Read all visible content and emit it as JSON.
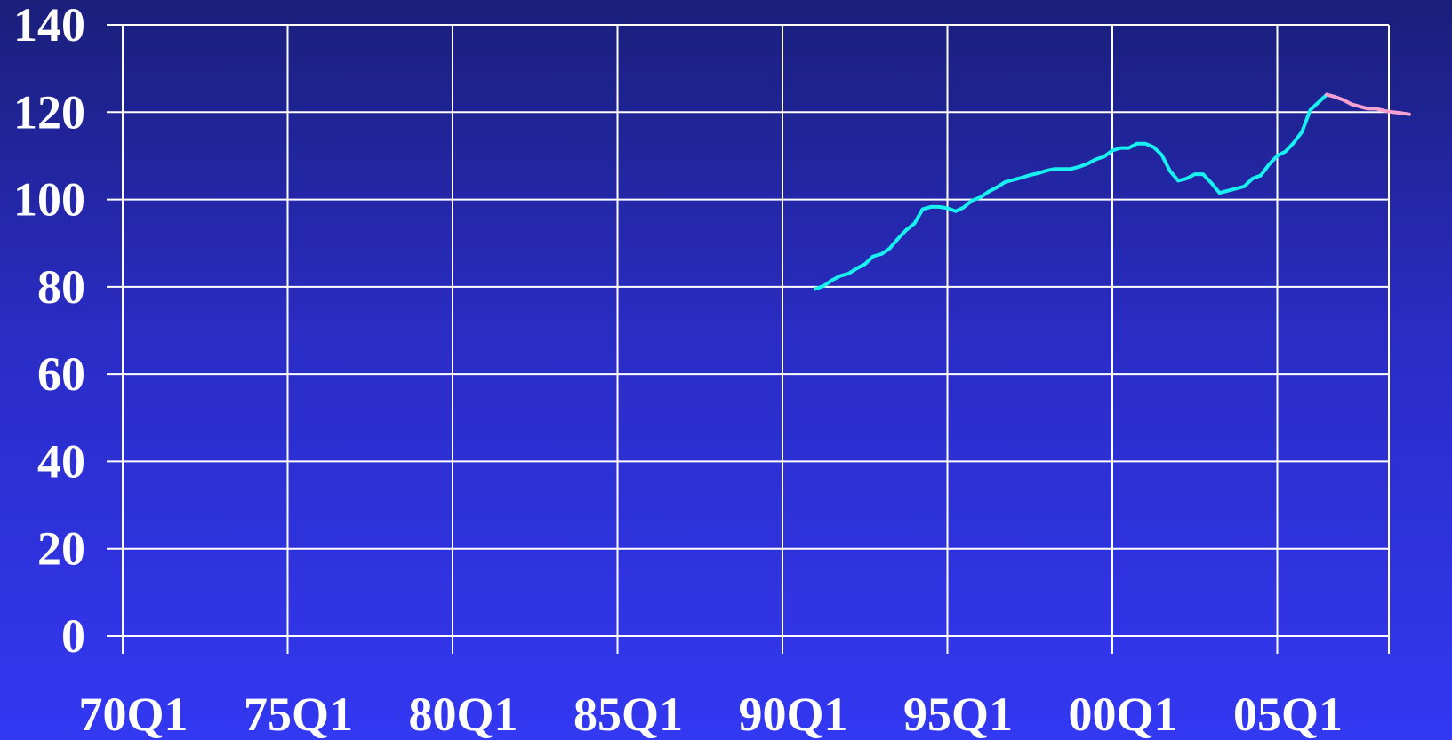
{
  "chart_data": {
    "type": "line",
    "title": "",
    "xlabel": "",
    "ylabel": "",
    "ylim": [
      0,
      140
    ],
    "y_ticks": [
      "0",
      "20",
      "40",
      "60",
      "80",
      "100",
      "120",
      "140"
    ],
    "x_range": [
      1970.0,
      2010.0
    ],
    "x_tick_labels": [
      "70Q1",
      "75Q1",
      "80Q1",
      "85Q1",
      "90Q1",
      "95Q1",
      "00Q1",
      "05Q1"
    ],
    "x_tick_positions": [
      1970.0,
      1975.0,
      1980.0,
      1985.0,
      1990.0,
      1995.0,
      2000.0,
      2005.0
    ],
    "grid": true,
    "legend": "none",
    "colors": {
      "grid": "#ffffff",
      "axis": "#ffffff",
      "series_actual": "#19f0f0",
      "series_forecast": "#f7a3d2"
    },
    "series": [
      {
        "style": "actual",
        "color": "#19f0f0",
        "points": [
          [
            1991.0,
            79.5
          ],
          [
            1991.25,
            80.2
          ],
          [
            1991.5,
            81.5
          ],
          [
            1991.75,
            82.5
          ],
          [
            1992.0,
            83.0
          ],
          [
            1992.25,
            84.2
          ],
          [
            1992.5,
            85.2
          ],
          [
            1992.75,
            87.0
          ],
          [
            1993.0,
            87.5
          ],
          [
            1993.25,
            88.8
          ],
          [
            1993.5,
            91.0
          ],
          [
            1993.75,
            93.0
          ],
          [
            1994.0,
            94.5
          ],
          [
            1994.25,
            97.8
          ],
          [
            1994.5,
            98.3
          ],
          [
            1994.75,
            98.3
          ],
          [
            1995.0,
            98.0
          ],
          [
            1995.25,
            97.3
          ],
          [
            1995.5,
            98.2
          ],
          [
            1995.75,
            99.8
          ],
          [
            1996.0,
            100.5
          ],
          [
            1996.25,
            101.8
          ],
          [
            1996.5,
            102.8
          ],
          [
            1996.75,
            104.0
          ],
          [
            1997.0,
            104.5
          ],
          [
            1997.25,
            105.0
          ],
          [
            1997.5,
            105.6
          ],
          [
            1997.75,
            106.0
          ],
          [
            1998.0,
            106.6
          ],
          [
            1998.25,
            107.0
          ],
          [
            1998.5,
            107.0
          ],
          [
            1998.75,
            107.0
          ],
          [
            1999.0,
            107.5
          ],
          [
            1999.25,
            108.2
          ],
          [
            1999.5,
            109.2
          ],
          [
            1999.75,
            109.8
          ],
          [
            2000.0,
            111.2
          ],
          [
            2000.25,
            111.8
          ],
          [
            2000.5,
            111.8
          ],
          [
            2000.75,
            112.8
          ],
          [
            2001.0,
            112.8
          ],
          [
            2001.25,
            112.0
          ],
          [
            2001.5,
            110.2
          ],
          [
            2001.75,
            106.5
          ],
          [
            2002.0,
            104.3
          ],
          [
            2002.25,
            104.8
          ],
          [
            2002.5,
            105.8
          ],
          [
            2002.75,
            105.8
          ],
          [
            2003.0,
            103.8
          ],
          [
            2003.25,
            101.5
          ],
          [
            2003.5,
            102.0
          ],
          [
            2003.75,
            102.5
          ],
          [
            2004.0,
            103.0
          ],
          [
            2004.25,
            104.8
          ],
          [
            2004.5,
            105.5
          ],
          [
            2004.75,
            108.0
          ],
          [
            2005.0,
            110.0
          ],
          [
            2005.25,
            111.0
          ],
          [
            2005.5,
            113.0
          ],
          [
            2005.75,
            115.5
          ],
          [
            2006.0,
            120.5
          ],
          [
            2006.5,
            124.0
          ]
        ]
      },
      {
        "style": "forecast",
        "color": "#f7a3d2",
        "points": [
          [
            2006.5,
            124.0
          ],
          [
            2006.75,
            123.5
          ],
          [
            2007.0,
            122.8
          ],
          [
            2007.25,
            121.8
          ],
          [
            2007.5,
            121.3
          ],
          [
            2007.75,
            120.8
          ],
          [
            2008.0,
            120.8
          ],
          [
            2008.25,
            120.3
          ],
          [
            2008.5,
            120.0
          ],
          [
            2008.75,
            119.8
          ],
          [
            2009.0,
            119.5
          ]
        ]
      }
    ]
  }
}
